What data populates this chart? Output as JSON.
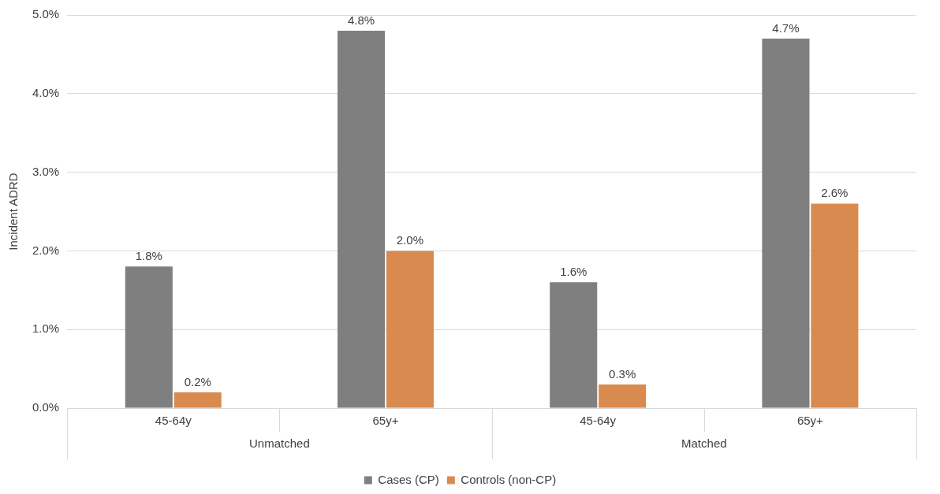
{
  "chart_data": {
    "type": "bar",
    "ylabel": "Incident ADRD",
    "categories": [
      "45-64y",
      "65y+",
      "45-64y",
      "65y+"
    ],
    "annotations": [
      "Unmatched",
      "Matched"
    ],
    "series": [
      {
        "name": "Cases (CP)",
        "color": "#7f7f7f",
        "values": [
          1.8,
          4.8,
          1.6,
          4.7
        ],
        "value_labels": [
          "1.8%",
          "4.8%",
          "1.6%",
          "4.7%"
        ]
      },
      {
        "name": "Controls (non-CP)",
        "color": "#d98a4e",
        "values": [
          0.2,
          2.0,
          0.3,
          2.6
        ],
        "value_labels": [
          "0.2%",
          "2.0%",
          "0.3%",
          "2.6%"
        ]
      }
    ],
    "ylim": [
      0,
      5
    ],
    "yticks": [
      {
        "value": 0,
        "label": "0.0%"
      },
      {
        "value": 1,
        "label": "1.0%"
      },
      {
        "value": 2,
        "label": "2.0%"
      },
      {
        "value": 3,
        "label": "3.0%"
      },
      {
        "value": 4,
        "label": "4.0%"
      },
      {
        "value": 5,
        "label": "5.0%"
      }
    ],
    "grid": "y",
    "legend": "bottom"
  }
}
